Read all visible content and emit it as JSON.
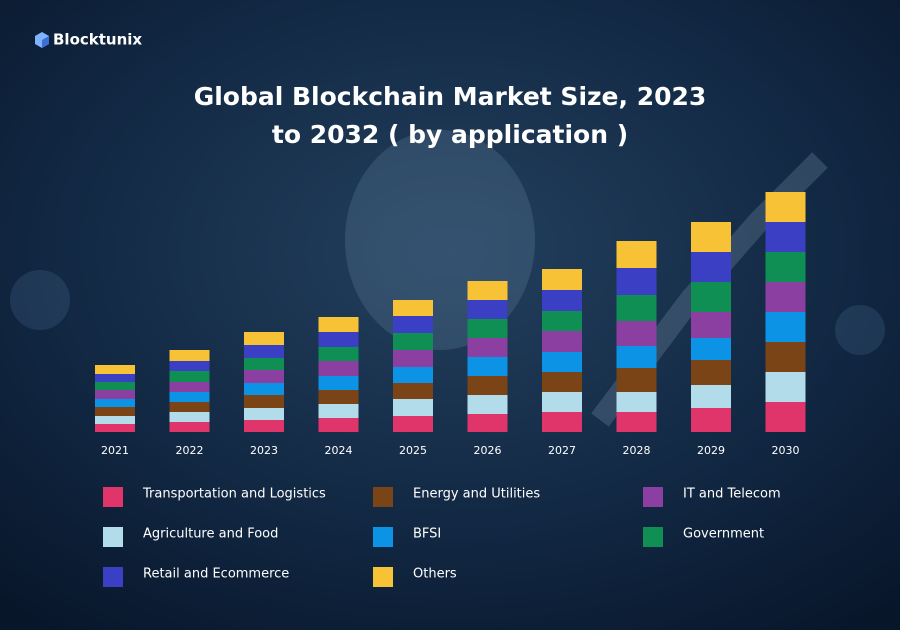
{
  "brand": "Blocktunix",
  "chart_data": {
    "type": "stacked-bar",
    "title": [
      "Global Blockchain Market Size, 2023",
      "to 2032 ( by application )"
    ],
    "categories": [
      "2021",
      "2022",
      "2023",
      "2024",
      "2025",
      "2026",
      "2027",
      "2028",
      "2029",
      "2030"
    ],
    "series": [
      {
        "name": "Transportation and Logistics",
        "color": "#e0356b",
        "values": [
          8,
          10,
          12,
          14,
          16,
          18,
          20,
          20,
          24,
          30
        ]
      },
      {
        "name": "Agriculture and Food",
        "color": "#b3dcea",
        "values": [
          8,
          10,
          12,
          14,
          17,
          19,
          20,
          20,
          23,
          30
        ]
      },
      {
        "name": "Energy and Utilities",
        "color": "#7a4416",
        "values": [
          9,
          10,
          13,
          14,
          16,
          19,
          20,
          24,
          25,
          30
        ]
      },
      {
        "name": "BFSI",
        "color": "#0d93e6",
        "values": [
          8,
          10,
          12,
          14,
          16,
          19,
          20,
          22,
          22,
          30
        ]
      },
      {
        "name": "IT and Telecom",
        "color": "#8b3fa0",
        "values": [
          9,
          10,
          13,
          15,
          17,
          19,
          21,
          25,
          26,
          30
        ]
      },
      {
        "name": "Government",
        "color": "#0f8f53",
        "values": [
          8,
          11,
          12,
          14,
          17,
          19,
          20,
          26,
          30,
          30
        ]
      },
      {
        "name": "Retail and Ecommerce",
        "color": "#3b3fc4",
        "values": [
          8,
          10,
          13,
          15,
          17,
          19,
          21,
          27,
          30,
          30
        ]
      },
      {
        "name": "Others",
        "color": "#f7c236",
        "values": [
          9,
          11,
          13,
          15,
          16,
          19,
          21,
          27,
          30,
          30
        ]
      }
    ]
  }
}
